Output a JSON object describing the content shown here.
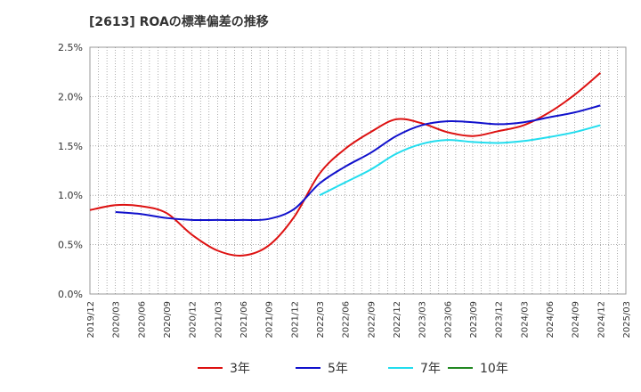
{
  "chart_data": {
    "type": "line",
    "title": "[2613]  ROAの標準偏差の推移",
    "xlabel": "",
    "ylabel": "",
    "ylim": [
      0,
      2.5
    ],
    "y_ticks": [
      "0.0%",
      "0.5%",
      "1.0%",
      "1.5%",
      "2.0%",
      "2.5%"
    ],
    "y_tick_values": [
      0,
      0.5,
      1.0,
      1.5,
      2.0,
      2.5
    ],
    "x_ticks": [
      "2019/12",
      "2020/03",
      "2020/06",
      "2020/09",
      "2020/12",
      "2021/03",
      "2021/06",
      "2021/09",
      "2021/12",
      "2022/03",
      "2022/06",
      "2022/09",
      "2022/12",
      "2023/03",
      "2023/06",
      "2023/09",
      "2023/12",
      "2024/03",
      "2024/06",
      "2024/09",
      "2024/12",
      "2025/03"
    ],
    "grid": true,
    "legend_position": "bottom",
    "series": [
      {
        "name": "3年",
        "color": "#dd1111",
        "values": [
          0.85,
          0.9,
          0.89,
          0.82,
          0.6,
          0.44,
          0.39,
          0.49,
          0.78,
          1.22,
          1.47,
          1.64,
          1.77,
          1.73,
          1.64,
          1.6,
          1.65,
          1.71,
          1.84,
          2.02,
          2.24
        ]
      },
      {
        "name": "5年",
        "color": "#1111cc",
        "values": [
          null,
          0.83,
          0.81,
          0.77,
          0.75,
          0.75,
          0.75,
          0.76,
          0.86,
          1.12,
          1.29,
          1.43,
          1.6,
          1.71,
          1.75,
          1.74,
          1.72,
          1.74,
          1.79,
          1.84,
          1.91
        ]
      },
      {
        "name": "7年",
        "color": "#22ddee",
        "values": [
          null,
          null,
          null,
          null,
          null,
          null,
          null,
          null,
          null,
          1.0,
          1.13,
          1.26,
          1.42,
          1.52,
          1.56,
          1.54,
          1.53,
          1.55,
          1.59,
          1.64,
          1.71
        ]
      },
      {
        "name": "10年",
        "color": "#228822",
        "values": [
          null,
          null,
          null,
          null,
          null,
          null,
          null,
          null,
          null,
          null,
          null,
          null,
          null,
          null,
          null,
          null,
          null,
          null,
          null,
          null,
          null
        ]
      }
    ]
  }
}
